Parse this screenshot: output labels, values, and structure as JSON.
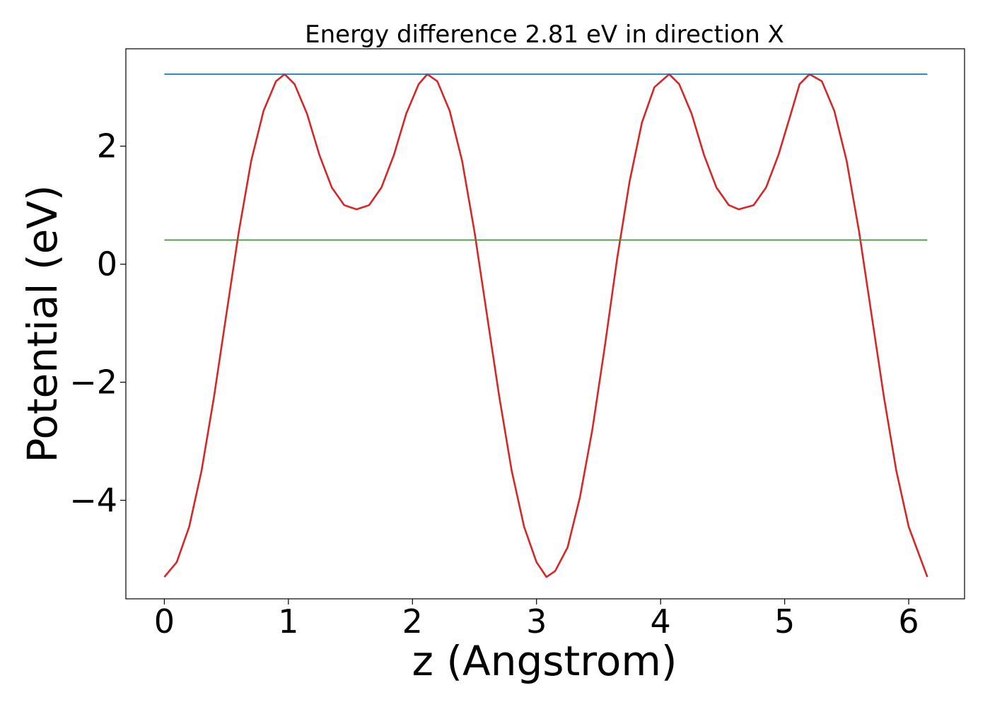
{
  "chart_data": {
    "type": "line",
    "title": "Energy difference 2.81 eV in direction X",
    "xlabel": "z (Angstrom)",
    "ylabel": "Potential (eV)",
    "xlim": [
      -0.31,
      6.45
    ],
    "ylim": [
      -5.67,
      3.65
    ],
    "grid": false,
    "xticks": [
      0,
      1,
      2,
      3,
      4,
      5,
      6
    ],
    "xtick_labels": [
      "0",
      "1",
      "2",
      "3",
      "4",
      "5",
      "6"
    ],
    "yticks": [
      2,
      0,
      -2,
      -4
    ],
    "ytick_labels": [
      "2",
      "0",
      "−2",
      "−4"
    ],
    "series": [
      {
        "color": "#d62728",
        "x": [
          0.0,
          0.1,
          0.2,
          0.3,
          0.4,
          0.5,
          0.6,
          0.7,
          0.8,
          0.9,
          0.97,
          1.05,
          1.15,
          1.25,
          1.35,
          1.45,
          1.55,
          1.65,
          1.75,
          1.85,
          1.95,
          2.05,
          2.12,
          2.2,
          2.3,
          2.4,
          2.5,
          2.6,
          2.7,
          2.8,
          2.9,
          3.0,
          3.08,
          3.15,
          3.25,
          3.35,
          3.45,
          3.55,
          3.65,
          3.75,
          3.85,
          3.95,
          4.07,
          4.15,
          4.25,
          4.35,
          4.45,
          4.55,
          4.63,
          4.75,
          4.85,
          4.95,
          5.05,
          5.12,
          5.2,
          5.3,
          5.4,
          5.5,
          5.6,
          5.7,
          5.8,
          5.9,
          6.0,
          6.15
        ],
        "y": [
          -5.3,
          -5.05,
          -4.45,
          -3.5,
          -2.25,
          -0.85,
          0.55,
          1.75,
          2.6,
          3.1,
          3.22,
          3.05,
          2.55,
          1.85,
          1.3,
          1.0,
          0.93,
          1.0,
          1.3,
          1.85,
          2.55,
          3.05,
          3.22,
          3.1,
          2.6,
          1.75,
          0.55,
          -0.85,
          -2.25,
          -3.5,
          -4.45,
          -5.05,
          -5.3,
          -5.2,
          -4.8,
          -3.95,
          -2.8,
          -1.4,
          0.1,
          1.4,
          2.4,
          3.0,
          3.22,
          3.05,
          2.55,
          1.85,
          1.3,
          1.0,
          0.93,
          1.0,
          1.3,
          1.85,
          2.55,
          3.05,
          3.22,
          3.1,
          2.6,
          1.75,
          0.55,
          -0.85,
          -2.25,
          -3.5,
          -4.45,
          -5.3
        ]
      },
      {
        "color": "#1f77b4",
        "x": [
          0.0,
          6.15
        ],
        "y": [
          3.22,
          3.22
        ]
      },
      {
        "color": "#2ca02c",
        "x": [
          0.0,
          6.15
        ],
        "y": [
          0.41,
          0.41
        ]
      }
    ]
  }
}
